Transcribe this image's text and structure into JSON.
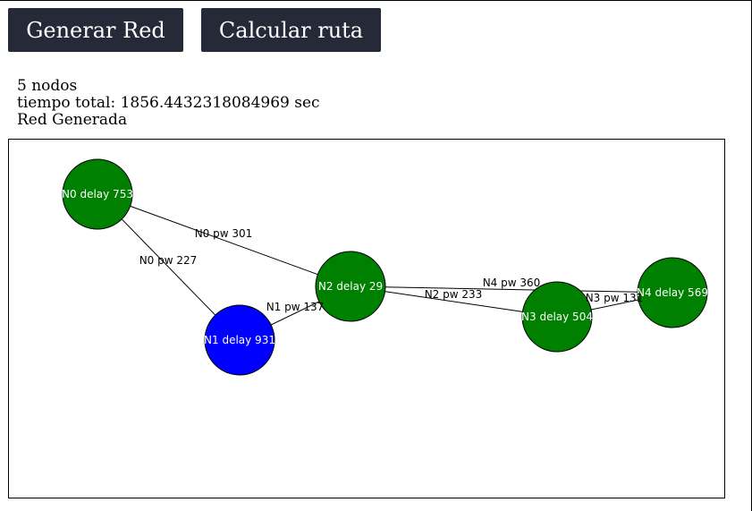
{
  "toolbar": {
    "generate_label": "Generar Red",
    "route_label": "Calcular ruta"
  },
  "info": {
    "node_count": "5 nodos",
    "total_time": "tiempo total: 1856.4432318084969 sec",
    "status": "Red Generada"
  },
  "colors": {
    "button_bg": "#262938",
    "node_default": "#008000",
    "node_selected": "#0000ff"
  },
  "network": {
    "nodes": [
      {
        "id": "N0",
        "label": "N0 delay 753",
        "color": "#008000"
      },
      {
        "id": "N1",
        "label": "N1 delay 931",
        "color": "#0000ff"
      },
      {
        "id": "N2",
        "label": "N2 delay 29",
        "color": "#008000"
      },
      {
        "id": "N3",
        "label": "N3 delay 504",
        "color": "#008000"
      },
      {
        "id": "N4",
        "label": "N4 delay 569",
        "color": "#008000"
      }
    ],
    "edges": [
      {
        "from": "N0",
        "to": "N2",
        "label": "N0 pw 301"
      },
      {
        "from": "N0",
        "to": "N1",
        "label": "N0 pw 227"
      },
      {
        "from": "N1",
        "to": "N2",
        "label": "N1 pw 137"
      },
      {
        "from": "N2",
        "to": "N4",
        "label": "N4 pw 360"
      },
      {
        "from": "N2",
        "to": "N3",
        "label": "N2 pw 233"
      },
      {
        "from": "N3",
        "to": "N4",
        "label": "N3 pw 131"
      }
    ]
  }
}
